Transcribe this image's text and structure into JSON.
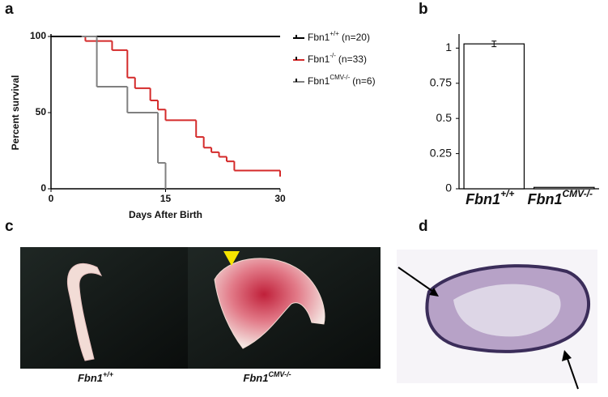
{
  "panels": [
    "a",
    "b",
    "c",
    "d"
  ],
  "chart_data": [
    {
      "type": "step",
      "xlabel": "Days After Birth",
      "ylabel": "Percent survival",
      "xlim": [
        0,
        30
      ],
      "ylim": [
        0,
        100
      ],
      "xticks": [
        0,
        15,
        30
      ],
      "yticks": [
        0,
        50,
        100
      ],
      "legend": "upper right",
      "series": [
        {
          "name": "Fbn1",
          "genotype": "+/+",
          "count_label": "(n=20)",
          "color": "#000000",
          "x": [
            0,
            30
          ],
          "values": [
            100,
            100
          ]
        },
        {
          "name": "Fbn1",
          "genotype": "-/-",
          "count_label": "(n=33)",
          "color": "#d42a2a",
          "x": [
            4,
            4.5,
            8,
            10,
            11,
            13,
            14,
            15,
            19,
            20,
            21,
            22,
            23,
            24,
            30
          ],
          "values": [
            100,
            97,
            91,
            73,
            66,
            58,
            52,
            45,
            34,
            27,
            24,
            21,
            18,
            12,
            8
          ]
        },
        {
          "name": "Fbn1",
          "genotype": "CMV-/-",
          "count_label": "(n=6)",
          "color": "#808080",
          "x": [
            4,
            6,
            10,
            14,
            15
          ],
          "values": [
            100,
            67,
            50,
            17,
            0
          ]
        }
      ]
    },
    {
      "type": "bar",
      "categories": [
        "Fbn1",
        "Fbn1"
      ],
      "category_superscripts": [
        "+/+",
        "CMV-/-"
      ],
      "values": [
        1.03,
        0.01
      ],
      "errors": [
        0.02,
        0
      ],
      "color": "#ffffff",
      "ylim": [
        0,
        1.1
      ],
      "yticks": [
        0,
        0.25,
        0.5,
        0.75,
        1
      ]
    }
  ],
  "photo_captions": [
    {
      "name": "Fbn1",
      "genotype": "+/+"
    },
    {
      "name": "Fbn1",
      "genotype": "CMV-/-"
    }
  ]
}
